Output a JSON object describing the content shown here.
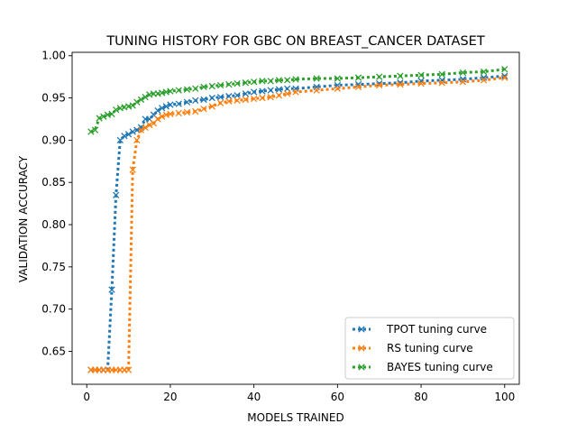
{
  "chart_data": {
    "type": "line",
    "title": "TUNING HISTORY FOR GBC ON BREAST_CANCER DATASET",
    "xlabel": "MODELS TRAINED",
    "ylabel": "VALIDATION ACCURACY",
    "xlim": [
      -3.5,
      103.5
    ],
    "ylim": [
      0.611,
      1.004
    ],
    "xticks": [
      0,
      20,
      40,
      60,
      80,
      100
    ],
    "yticks": [
      0.65,
      0.7,
      0.75,
      0.8,
      0.85,
      0.9,
      0.95,
      1.0
    ],
    "ytick_labels": [
      "0.65",
      "0.70",
      "0.75",
      "0.80",
      "0.85",
      "0.90",
      "0.95",
      "1.00"
    ],
    "grid": false,
    "legend_position": "lower-right",
    "series": [
      {
        "name": "TPOT tuning curve",
        "color": "#1f77b4",
        "points": [
          [
            1,
            0.628
          ],
          [
            2,
            0.628
          ],
          [
            3,
            0.628
          ],
          [
            4,
            0.628
          ],
          [
            5,
            0.628
          ],
          [
            6,
            0.723
          ],
          [
            7,
            0.835
          ],
          [
            8,
            0.9
          ],
          [
            9,
            0.905
          ],
          [
            10,
            0.907
          ],
          [
            11,
            0.91
          ],
          [
            12,
            0.912
          ],
          [
            13,
            0.915
          ],
          [
            14,
            0.925
          ],
          [
            15,
            0.925
          ],
          [
            16,
            0.93
          ],
          [
            17,
            0.935
          ],
          [
            18,
            0.938
          ],
          [
            19,
            0.94
          ],
          [
            20,
            0.942
          ],
          [
            22,
            0.943
          ],
          [
            24,
            0.945
          ],
          [
            26,
            0.947
          ],
          [
            28,
            0.948
          ],
          [
            30,
            0.95
          ],
          [
            32,
            0.951
          ],
          [
            34,
            0.952
          ],
          [
            36,
            0.953
          ],
          [
            38,
            0.955
          ],
          [
            40,
            0.957
          ],
          [
            42,
            0.958
          ],
          [
            44,
            0.959
          ],
          [
            46,
            0.96
          ],
          [
            48,
            0.961
          ],
          [
            50,
            0.961
          ],
          [
            55,
            0.963
          ],
          [
            60,
            0.965
          ],
          [
            65,
            0.966
          ],
          [
            70,
            0.967
          ],
          [
            75,
            0.968
          ],
          [
            80,
            0.97
          ],
          [
            85,
            0.971
          ],
          [
            90,
            0.972
          ],
          [
            95,
            0.974
          ],
          [
            100,
            0.976
          ]
        ]
      },
      {
        "name": "RS tuning curve",
        "color": "#ff7f0e",
        "points": [
          [
            1,
            0.628
          ],
          [
            2,
            0.628
          ],
          [
            3,
            0.628
          ],
          [
            4,
            0.628
          ],
          [
            5,
            0.628
          ],
          [
            6,
            0.628
          ],
          [
            7,
            0.628
          ],
          [
            8,
            0.628
          ],
          [
            9,
            0.628
          ],
          [
            10,
            0.628
          ],
          [
            11,
            0.865
          ],
          [
            12,
            0.9
          ],
          [
            13,
            0.912
          ],
          [
            14,
            0.915
          ],
          [
            15,
            0.918
          ],
          [
            16,
            0.92
          ],
          [
            17,
            0.925
          ],
          [
            18,
            0.928
          ],
          [
            19,
            0.93
          ],
          [
            20,
            0.931
          ],
          [
            22,
            0.932
          ],
          [
            24,
            0.933
          ],
          [
            26,
            0.934
          ],
          [
            28,
            0.937
          ],
          [
            30,
            0.94
          ],
          [
            32,
            0.944
          ],
          [
            34,
            0.946
          ],
          [
            36,
            0.947
          ],
          [
            38,
            0.948
          ],
          [
            40,
            0.949
          ],
          [
            42,
            0.95
          ],
          [
            44,
            0.951
          ],
          [
            46,
            0.953
          ],
          [
            48,
            0.955
          ],
          [
            50,
            0.957
          ],
          [
            55,
            0.959
          ],
          [
            60,
            0.961
          ],
          [
            65,
            0.963
          ],
          [
            70,
            0.965
          ],
          [
            75,
            0.966
          ],
          [
            80,
            0.967
          ],
          [
            85,
            0.968
          ],
          [
            90,
            0.969
          ],
          [
            95,
            0.971
          ],
          [
            100,
            0.974
          ]
        ]
      },
      {
        "name": "BAYES tuning curve",
        "color": "#2ca02c",
        "points": [
          [
            1,
            0.91
          ],
          [
            2,
            0.912
          ],
          [
            3,
            0.926
          ],
          [
            4,
            0.928
          ],
          [
            5,
            0.93
          ],
          [
            6,
            0.931
          ],
          [
            7,
            0.936
          ],
          [
            8,
            0.938
          ],
          [
            9,
            0.939
          ],
          [
            10,
            0.94
          ],
          [
            11,
            0.941
          ],
          [
            12,
            0.945
          ],
          [
            13,
            0.948
          ],
          [
            14,
            0.951
          ],
          [
            15,
            0.954
          ],
          [
            16,
            0.955
          ],
          [
            17,
            0.955
          ],
          [
            18,
            0.956
          ],
          [
            19,
            0.957
          ],
          [
            20,
            0.958
          ],
          [
            22,
            0.959
          ],
          [
            24,
            0.96
          ],
          [
            26,
            0.961
          ],
          [
            28,
            0.963
          ],
          [
            30,
            0.964
          ],
          [
            32,
            0.965
          ],
          [
            34,
            0.966
          ],
          [
            36,
            0.967
          ],
          [
            38,
            0.968
          ],
          [
            40,
            0.969
          ],
          [
            42,
            0.97
          ],
          [
            44,
            0.97
          ],
          [
            46,
            0.971
          ],
          [
            48,
            0.971
          ],
          [
            50,
            0.972
          ],
          [
            55,
            0.973
          ],
          [
            60,
            0.973
          ],
          [
            65,
            0.974
          ],
          [
            70,
            0.975
          ],
          [
            75,
            0.976
          ],
          [
            80,
            0.977
          ],
          [
            85,
            0.978
          ],
          [
            90,
            0.98
          ],
          [
            95,
            0.981
          ],
          [
            100,
            0.984
          ]
        ]
      }
    ]
  }
}
